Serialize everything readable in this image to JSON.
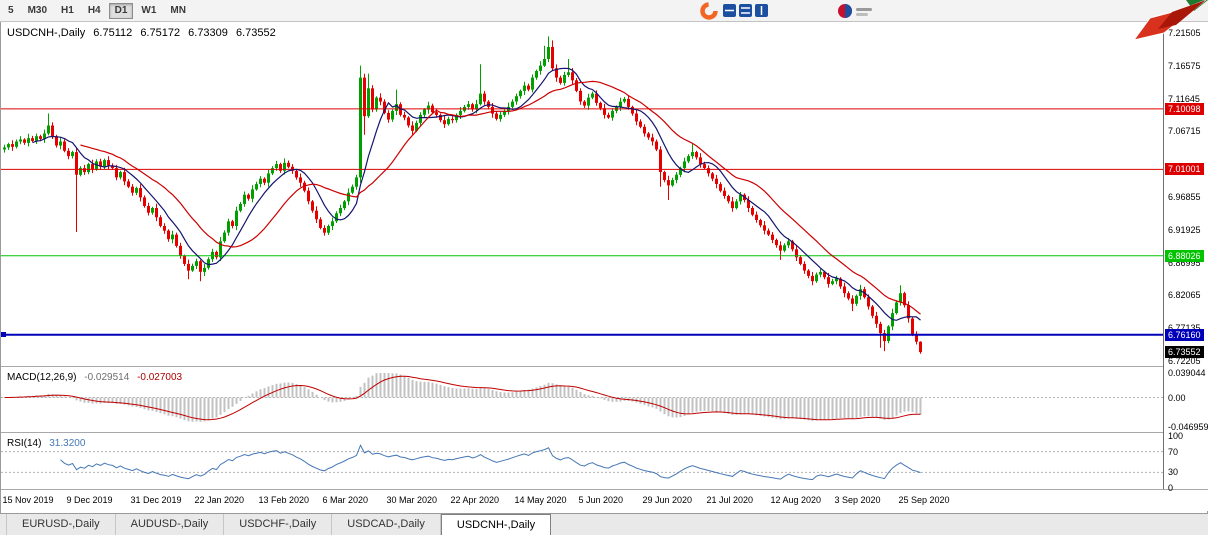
{
  "toolbar": {
    "periods": [
      {
        "label": "5",
        "active": false
      },
      {
        "label": "M30",
        "active": false
      },
      {
        "label": "H1",
        "active": false
      },
      {
        "label": "H4",
        "active": false
      },
      {
        "label": "D1",
        "active": true
      },
      {
        "label": "W1",
        "active": false
      },
      {
        "label": "MN",
        "active": false
      }
    ]
  },
  "chart_header": {
    "symbol_period": "USDCNH-,Daily",
    "open": "6.75112",
    "high": "6.75172",
    "low": "6.73309",
    "close": "6.73552"
  },
  "price_axis": {
    "labels": [
      {
        "text": "7.21505",
        "value": 7.21505
      },
      {
        "text": "7.16575",
        "value": 7.16575
      },
      {
        "text": "7.11645",
        "value": 7.11645
      },
      {
        "text": "7.06715",
        "value": 7.06715
      },
      {
        "text": "6.96855",
        "value": 6.96855
      },
      {
        "text": "6.91925",
        "value": 6.91925
      },
      {
        "text": "6.86995",
        "value": 6.86995
      },
      {
        "text": "6.82065",
        "value": 6.82065
      },
      {
        "text": "6.77135",
        "value": 6.77135
      },
      {
        "text": "6.72205",
        "value": 6.72205
      }
    ],
    "hlines": [
      {
        "label": "7.10098",
        "value": 7.10098,
        "color": "#dd0000",
        "width": 1
      },
      {
        "label": "7.01001",
        "value": 7.01001,
        "color": "#dd0000",
        "width": 1
      },
      {
        "label": "6.88026",
        "value": 6.88026,
        "color": "#00c400",
        "width": 1
      },
      {
        "label": "6.76160",
        "value": 6.7616,
        "color": "#0000bb",
        "width": 2,
        "handle": true
      }
    ],
    "current_price": {
      "label": "6.73552",
      "value": 6.73552,
      "color": "#000000"
    }
  },
  "chart_data": {
    "type": "candlestick",
    "symbol": "USDCNH-, Daily",
    "up_color": "#00a000",
    "down_color": "#e60000",
    "price_range": {
      "top": 7.21505,
      "bottom": 6.72205
    },
    "first_open": 7.04,
    "closes": [
      7.043,
      7.048,
      7.044,
      7.052,
      7.055,
      7.05,
      7.057,
      7.053,
      7.06,
      7.056,
      7.064,
      7.076,
      7.06,
      7.046,
      7.052,
      7.038,
      7.03,
      7.036,
      7.002,
      7.012,
      7.006,
      7.018,
      7.01,
      7.022,
      7.014,
      7.024,
      7.016,
      7.012,
      6.998,
      7.006,
      6.992,
      6.984,
      6.975,
      6.982,
      6.968,
      6.955,
      6.945,
      6.952,
      6.938,
      6.925,
      6.918,
      6.905,
      6.912,
      6.895,
      6.88,
      6.868,
      6.858,
      6.865,
      6.872,
      6.856,
      6.862,
      6.875,
      6.886,
      6.878,
      6.902,
      6.915,
      6.932,
      6.925,
      6.948,
      6.958,
      6.972,
      6.966,
      6.98,
      6.988,
      6.996,
      6.99,
      7.004,
      7.012,
      7.018,
      7.008,
      7.02,
      7.014,
      7.008,
      6.998,
      6.99,
      6.978,
      6.962,
      6.948,
      6.935,
      6.922,
      6.915,
      6.925,
      6.932,
      6.944,
      6.952,
      6.962,
      6.975,
      6.984,
      6.998,
      7.148,
      7.09,
      7.132,
      7.1,
      7.118,
      7.112,
      7.095,
      7.085,
      7.098,
      7.108,
      7.092,
      7.088,
      7.076,
      7.068,
      7.08,
      7.092,
      7.1,
      7.106,
      7.096,
      7.092,
      7.084,
      7.078,
      7.086,
      7.084,
      7.092,
      7.098,
      7.104,
      7.108,
      7.1,
      7.108,
      7.124,
      7.112,
      7.104,
      7.094,
      7.086,
      7.092,
      7.098,
      7.104,
      7.112,
      7.12,
      7.128,
      7.136,
      7.13,
      7.148,
      7.158,
      7.166,
      7.176,
      7.194,
      7.162,
      7.148,
      7.14,
      7.152,
      7.156,
      7.144,
      7.128,
      7.112,
      7.106,
      7.118,
      7.124,
      7.11,
      7.102,
      7.092,
      7.088,
      7.098,
      7.104,
      7.112,
      7.116,
      7.104,
      7.094,
      7.082,
      7.074,
      7.064,
      7.058,
      7.052,
      7.04,
      7.006,
      6.994,
      6.986,
      6.994,
      7.002,
      7.012,
      7.022,
      7.03,
      7.036,
      7.028,
      7.018,
      7.012,
      7.004,
      6.996,
      6.988,
      6.978,
      6.97,
      6.962,
      6.952,
      6.962,
      6.972,
      6.964,
      6.952,
      6.942,
      6.934,
      6.926,
      6.918,
      6.912,
      6.904,
      6.896,
      6.888,
      6.896,
      6.902,
      6.89,
      6.878,
      6.868,
      6.858,
      6.85,
      6.842,
      6.852,
      6.856,
      6.848,
      6.838,
      6.842,
      6.846,
      6.834,
      6.824,
      6.816,
      6.808,
      6.82,
      6.83,
      6.818,
      6.804,
      6.79,
      6.778,
      6.764,
      6.752,
      6.774,
      6.794,
      6.81,
      6.824,
      6.806,
      6.786,
      6.762,
      6.7511,
      6.73552
    ],
    "wick_high_pattern": [
      0.004,
      0.0022,
      0.0058,
      0.003,
      0.0048,
      0.002,
      0.0065,
      0.0034
    ],
    "wick_low_pattern": [
      0.0032,
      0.0056,
      0.0021,
      0.0047,
      0.0036,
      0.0062,
      0.0025,
      0.0042
    ],
    "overrides": {
      "11": {
        "h": 7.094
      },
      "18": {
        "l": 6.916
      },
      "46": {
        "l": 6.845
      },
      "49": {
        "l": 6.842
      },
      "89": {
        "h": 7.166,
        "l": 6.99
      },
      "90": {
        "l": 7.062
      },
      "91": {
        "h": 7.154
      },
      "98": {
        "h": 7.13
      },
      "119": {
        "h": 7.168
      },
      "135": {
        "h": 7.196
      },
      "136": {
        "h": 7.21
      },
      "137": {
        "h": 7.204
      },
      "141": {
        "h": 7.176
      },
      "164": {
        "l": 6.984
      },
      "166": {
        "l": 6.964
      },
      "172": {
        "h": 7.05
      },
      "194": {
        "l": 6.874
      },
      "212": {
        "l": 6.797
      },
      "219": {
        "l": 6.742
      },
      "220": {
        "l": 6.737
      },
      "224": {
        "h": 6.836
      },
      "229": {
        "o": 6.75112,
        "h": 6.75172,
        "l": 6.73309
      }
    },
    "ma": [
      {
        "period": 8,
        "color": "#14146e"
      },
      {
        "period": 20,
        "color": "#cc0000"
      }
    ],
    "x_labels": [
      {
        "i": 0,
        "t": "15 Nov 2019"
      },
      {
        "i": 16,
        "t": "9 Dec 2019"
      },
      {
        "i": 32,
        "t": "31 Dec 2019"
      },
      {
        "i": 48,
        "t": "22 Jan 2020"
      },
      {
        "i": 64,
        "t": "13 Feb 2020"
      },
      {
        "i": 80,
        "t": "6 Mar 2020"
      },
      {
        "i": 96,
        "t": "30 Mar 2020"
      },
      {
        "i": 112,
        "t": "22 Apr 2020"
      },
      {
        "i": 128,
        "t": "14 May 2020"
      },
      {
        "i": 144,
        "t": "5 Jun 2020"
      },
      {
        "i": 160,
        "t": "29 Jun 2020"
      },
      {
        "i": 176,
        "t": "21 Jul 2020"
      },
      {
        "i": 192,
        "t": "12 Aug 2020"
      },
      {
        "i": 208,
        "t": "3 Sep 2020"
      },
      {
        "i": 224,
        "t": "25 Sep 2020"
      }
    ]
  },
  "macd": {
    "title": "MACD(12,26,9)",
    "value_main": "-0.029514",
    "value_signal": "-0.027003",
    "fast": 12,
    "slow": 26,
    "signal": 9,
    "axis_max": 0.039044,
    "axis_min": -0.046959,
    "axis_max_label": "0.039044",
    "axis_zero_label": "0.00",
    "axis_min_label": "-0.046959",
    "hist_color": "#c2c2c2",
    "signal_color": "#c00000"
  },
  "rsi": {
    "title": "RSI(14)",
    "value": "31.3200",
    "period": 14,
    "levels": [
      70,
      30
    ],
    "axis_labels": [
      "100",
      "70",
      "30",
      "0"
    ],
    "line_color": "#4577b5"
  },
  "tabs": {
    "active_index": 4,
    "items": [
      "EURUSD-,Daily",
      "AUDUSD-,Daily",
      "USDCHF-,Daily",
      "USDCAD-,Daily",
      "USDCNH-,Daily"
    ]
  }
}
